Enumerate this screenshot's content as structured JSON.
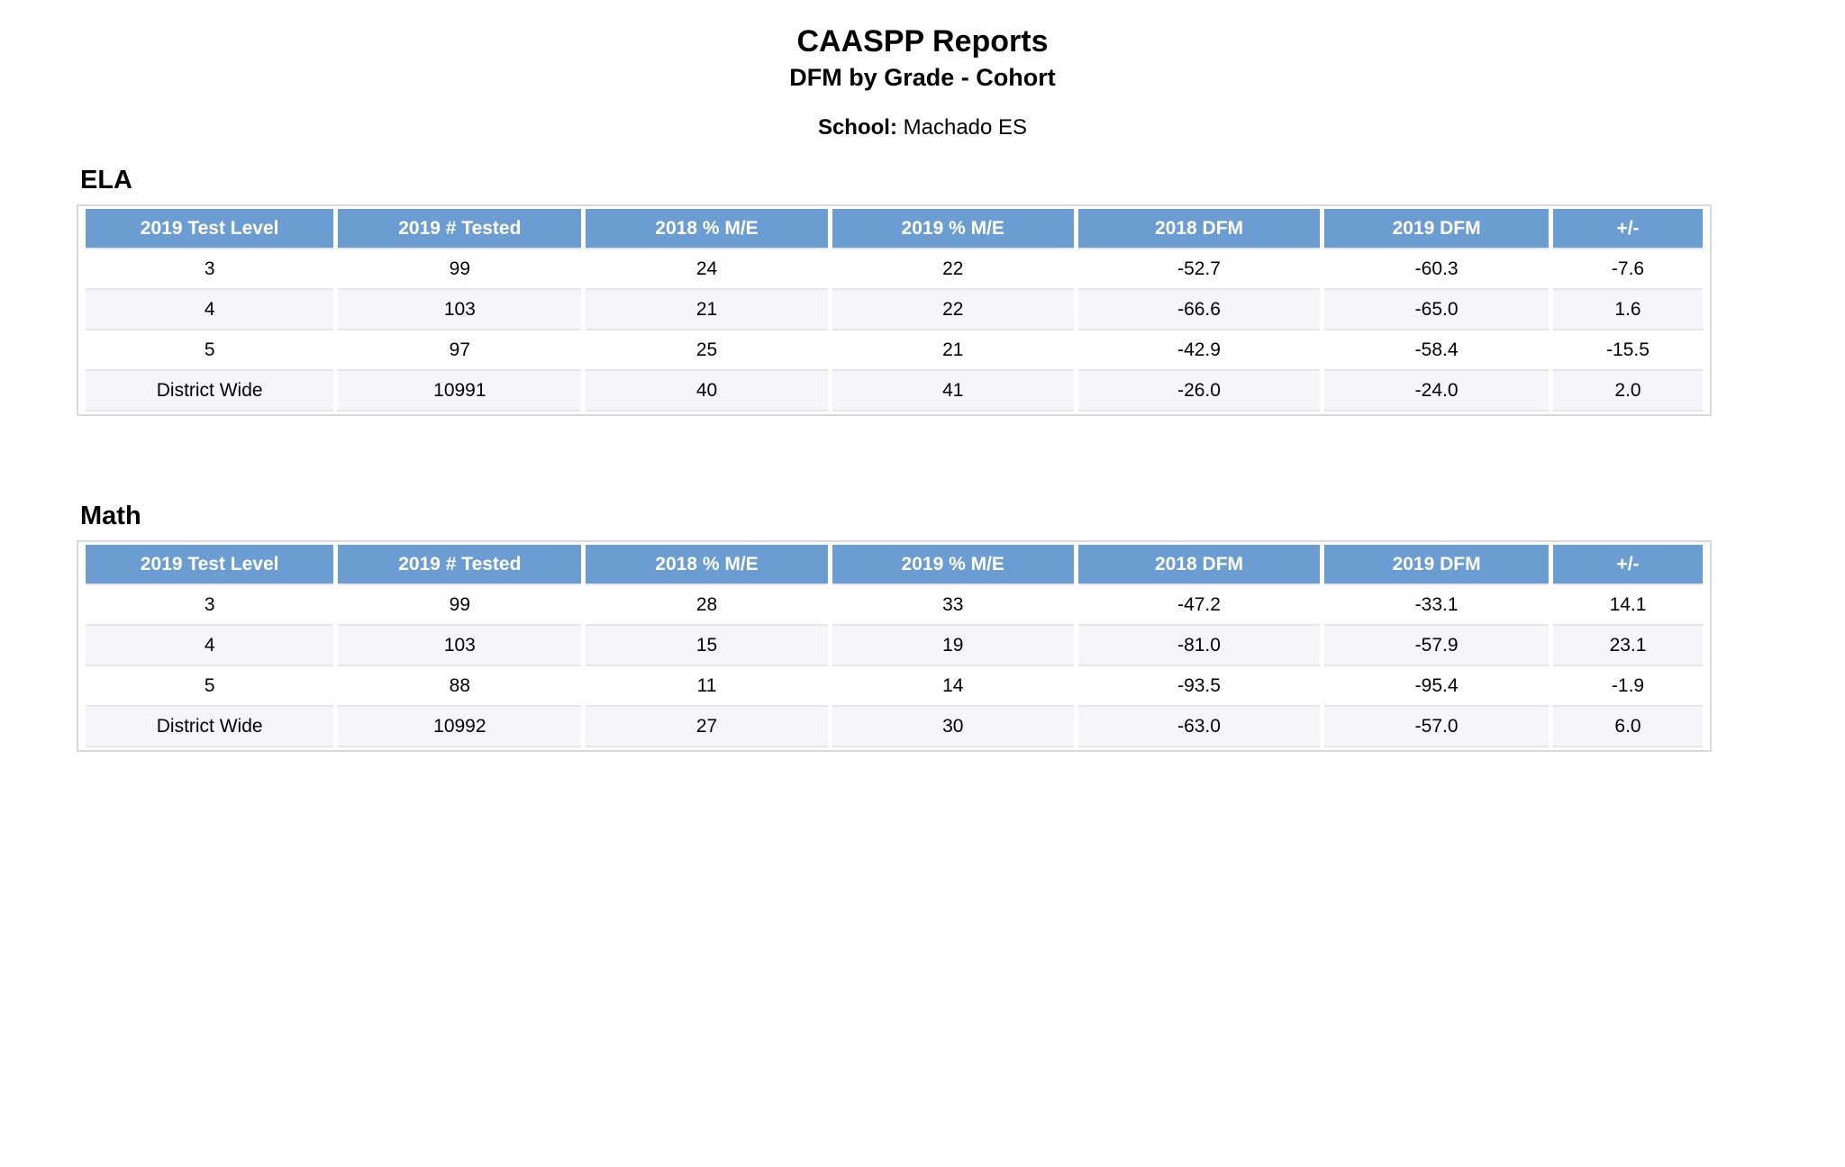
{
  "page": {
    "title": "CAASPP Reports",
    "subtitle": "DFM by Grade - Cohort",
    "school_label": "School:",
    "school_name": "Machado ES"
  },
  "columns": [
    "2019 Test Level",
    "2019 # Tested",
    "2018 % M/E",
    "2019 % M/E",
    "2018 DFM",
    "2019 DFM",
    "+/-"
  ],
  "tables": [
    {
      "caption": "ELA",
      "rows": [
        [
          "3",
          "99",
          "24",
          "22",
          "-52.7",
          "-60.3",
          "-7.6"
        ],
        [
          "4",
          "103",
          "21",
          "22",
          "-66.6",
          "-65.0",
          "1.6"
        ],
        [
          "5",
          "97",
          "25",
          "21",
          "-42.9",
          "-58.4",
          "-15.5"
        ],
        [
          "District Wide",
          "10991",
          "40",
          "41",
          "-26.0",
          "-24.0",
          "2.0"
        ]
      ]
    },
    {
      "caption": "Math",
      "rows": [
        [
          "3",
          "99",
          "28",
          "33",
          "-47.2",
          "-33.1",
          "14.1"
        ],
        [
          "4",
          "103",
          "15",
          "19",
          "-81.0",
          "-57.9",
          "23.1"
        ],
        [
          "5",
          "88",
          "11",
          "14",
          "-93.5",
          "-95.4",
          "-1.9"
        ],
        [
          "District Wide",
          "10992",
          "27",
          "30",
          "-63.0",
          "-57.0",
          "6.0"
        ]
      ]
    }
  ],
  "colors": {
    "header_bg": "#6b9dd2",
    "header_text": "#ffffff",
    "row_alt_bg": "#f5f5fa",
    "cell_border": "#e6e6e9",
    "outer_border": "#d9d9dc"
  }
}
